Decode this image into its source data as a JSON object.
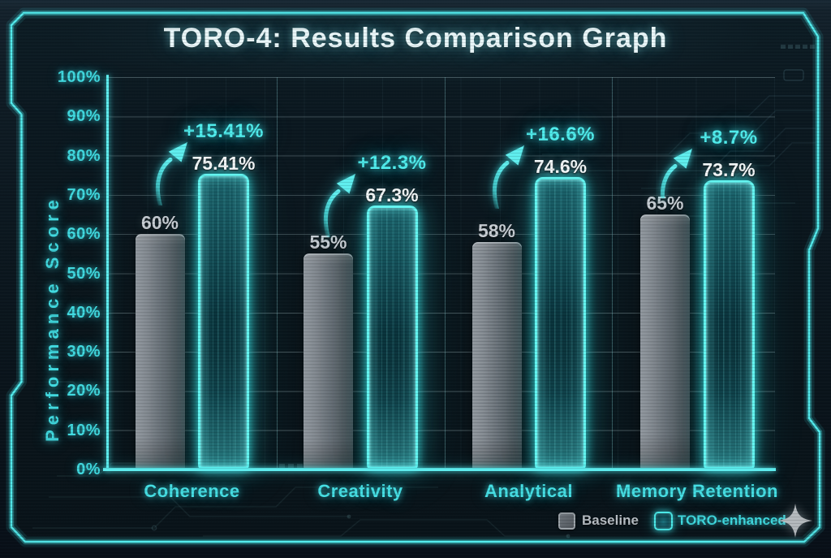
{
  "title": "TORO-4: Results Comparison Graph",
  "chart_data": {
    "type": "bar",
    "title": "TORO-4: Results Comparison Graph",
    "categories": [
      "Coherence",
      "Creativity",
      "Analytical",
      "Memory Retention"
    ],
    "series": [
      {
        "name": "Baseline",
        "color": "#8a9198",
        "values": [
          60,
          55,
          58,
          65
        ],
        "labels": [
          "60%",
          "55%",
          "58%",
          "65%"
        ]
      },
      {
        "name": "TORO-enhanced",
        "color": "#3fe3e3",
        "values": [
          75.41,
          67.3,
          74.6,
          73.7
        ],
        "labels": [
          "75.41%",
          "67.3%",
          "74.6%",
          "73.7%"
        ]
      }
    ],
    "improvements": [
      "+15.41%",
      "+12.3%",
      "+16.6%",
      "+8.7%"
    ],
    "ylabel": "Performance Score",
    "xlabel": "",
    "yticks": [
      "0%",
      "10%",
      "20%",
      "30%",
      "40%",
      "50%",
      "60%",
      "70%",
      "80%",
      "90%",
      "100%"
    ],
    "ylim": [
      0,
      100
    ],
    "grid": true,
    "legend_position": "bottom-right"
  },
  "legend": {
    "items": [
      {
        "label": "Baseline",
        "swatch": "gray"
      },
      {
        "label": "TORO-enhanced",
        "swatch": "cyan"
      }
    ]
  },
  "icons": {
    "sparkle": "four-point-star"
  },
  "colors": {
    "accent_cyan": "#4fecec",
    "frame": "#49e5e8",
    "background": "#0a151b",
    "baseline_gray": "#8a9198",
    "text_white": "#f4f8f9"
  }
}
